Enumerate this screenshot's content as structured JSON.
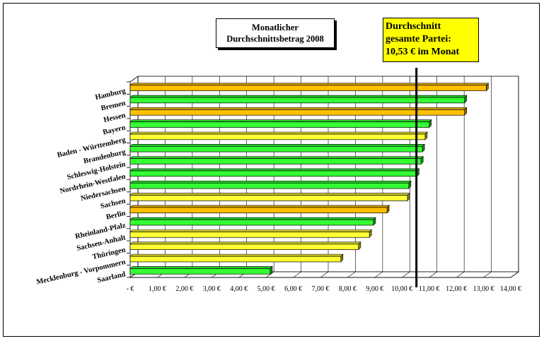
{
  "chart_data": {
    "type": "bar",
    "orientation": "horizontal",
    "title": [
      "Monatlicher",
      "Durchschnittsbetrag 2008"
    ],
    "reference_line": {
      "value": 10.53,
      "label": [
        "Durchschnitt",
        "gesamte Partei:",
        "10,53 € im Monat"
      ]
    },
    "categories": [
      "Hamburg",
      "Bremen",
      "Hessen",
      "Bayern",
      "Baden - Württemberg",
      "Brandenburg",
      "Schleswig-Holstein",
      "Nordrhein-Westfalen",
      "Niedersachsen",
      "Sachsen",
      "Berlin",
      "Rheinland-Pfalz",
      "Sachsen-Anhalt",
      "Thüringen",
      "Mecklenburg - Vorpommern",
      "Saarland"
    ],
    "values": [
      13.1,
      12.3,
      12.3,
      11.0,
      10.85,
      10.75,
      10.7,
      10.55,
      10.25,
      10.2,
      9.45,
      8.95,
      8.8,
      8.4,
      7.75,
      5.15
    ],
    "bar_colors": [
      "#ffc000",
      "#33ff33",
      "#ffc000",
      "#33ff33",
      "#ffff33",
      "#33ff33",
      "#33ff33",
      "#33ff33",
      "#33ff33",
      "#ffff33",
      "#ffc000",
      "#33ff33",
      "#ffff33",
      "#ffff33",
      "#ffff33",
      "#33ff33"
    ],
    "xlim": [
      0,
      14
    ],
    "xtick_labels": [
      "-    €",
      "1,00 €",
      "2,00 €",
      "3,00 €",
      "4,00 €",
      "5,00 €",
      "6,00 €",
      "7,00 €",
      "8,00 €",
      "9,00 €",
      "10,00 €",
      "11,00 €",
      "12,00 €",
      "13,00 €",
      "14,00 €"
    ],
    "grid": true
  }
}
